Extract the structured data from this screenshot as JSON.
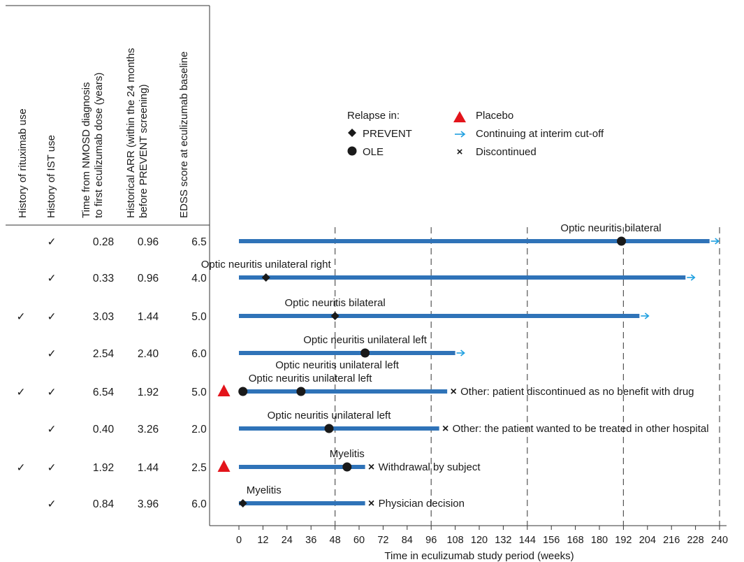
{
  "chart_data": {
    "type": "swimmer",
    "xlabel": "Time in eculizumab study period (weeks)",
    "xlim": [
      0,
      240
    ],
    "xticks": [
      0,
      12,
      24,
      36,
      48,
      60,
      72,
      84,
      96,
      108,
      120,
      132,
      144,
      156,
      168,
      180,
      192,
      204,
      216,
      228,
      240
    ],
    "reference_lines": [
      48,
      96,
      144,
      192,
      240
    ],
    "columns": [
      {
        "key": "rituximab",
        "label": "History of rituximab use"
      },
      {
        "key": "ist",
        "label": "History of IST use"
      },
      {
        "key": "time_dx",
        "label": [
          "Time from NMOSD diagnosis",
          "to first eculizumab dose (years)"
        ]
      },
      {
        "key": "arr",
        "label": [
          "Historical ARR (within the 24 months",
          "before PREVENT screening)"
        ]
      },
      {
        "key": "edss",
        "label": "EDSS score at eculizumab baseline"
      }
    ],
    "legend": {
      "relapse_title": "Relapse in:",
      "prevent": "PREVENT",
      "ole": "OLE",
      "placebo": "Placebo",
      "continuing": "Continuing at interim cut-off",
      "discontinued": "Discontinued"
    },
    "colors": {
      "bar": "#2f73b8",
      "placebo": "#e3141b",
      "continuing": "#1e9fe0",
      "discontinued": "#a4309a",
      "marker": "#1a1a1a",
      "text": "#1a1a1a"
    },
    "patients": [
      {
        "rituximab": "",
        "ist": "✓",
        "time_dx": "0.28",
        "arr": "0.96",
        "edss": "6.5",
        "end": 235,
        "status": "continuing",
        "placebo": false,
        "relapses": [
          {
            "week": 191,
            "study": "OLE",
            "label": "Optic neuritis bilateral"
          }
        ],
        "end_label": ""
      },
      {
        "rituximab": "",
        "ist": "✓",
        "time_dx": "0.33",
        "arr": "0.96",
        "edss": "4.0",
        "end": 223,
        "status": "continuing",
        "placebo": false,
        "relapses": [
          {
            "week": 13.5,
            "study": "PREVENT",
            "label": "Optic neuritis unilateral right"
          }
        ],
        "end_label": ""
      },
      {
        "rituximab": "✓",
        "ist": "✓",
        "time_dx": "3.03",
        "arr": "1.44",
        "edss": "5.0",
        "end": 200,
        "status": "continuing",
        "placebo": false,
        "relapses": [
          {
            "week": 48,
            "study": "PREVENT",
            "label": "Optic neuritis bilateral"
          }
        ],
        "end_label": ""
      },
      {
        "rituximab": "",
        "ist": "✓",
        "time_dx": "2.54",
        "arr": "2.40",
        "edss": "6.0",
        "end": 108,
        "status": "continuing",
        "placebo": false,
        "relapses": [
          {
            "week": 63,
            "study": "OLE",
            "label": "Optic neuritis unilateral left"
          }
        ],
        "end_label": ""
      },
      {
        "rituximab": "✓",
        "ist": "✓",
        "time_dx": "6.54",
        "arr": "1.92",
        "edss": "5.0",
        "end": 104,
        "status": "discontinued",
        "placebo": true,
        "relapses": [
          {
            "week": 2,
            "study": "OLE",
            "label": "Optic neuritis unilateral left"
          },
          {
            "week": 31,
            "study": "OLE",
            "label": "Optic neuritis unilateral left"
          }
        ],
        "end_label": "Other: patient discontinued as no benefit with drug"
      },
      {
        "rituximab": "",
        "ist": "✓",
        "time_dx": "0.40",
        "arr": "3.26",
        "edss": "2.0",
        "end": 100,
        "status": "discontinued",
        "placebo": false,
        "relapses": [
          {
            "week": 45,
            "study": "OLE",
            "label": "Optic neuritis unilateral left"
          }
        ],
        "end_label": "Other: the patient wanted to be treated in other hospital"
      },
      {
        "rituximab": "✓",
        "ist": "✓",
        "time_dx": "1.92",
        "arr": "1.44",
        "edss": "2.5",
        "end": 63,
        "status": "discontinued",
        "placebo": true,
        "relapses": [
          {
            "week": 54,
            "study": "OLE",
            "label": "Myelitis"
          }
        ],
        "end_label": "Withdrawal by subject"
      },
      {
        "rituximab": "",
        "ist": "✓",
        "time_dx": "0.84",
        "arr": "3.96",
        "edss": "6.0",
        "end": 63,
        "status": "discontinued",
        "placebo": false,
        "relapses": [
          {
            "week": 2,
            "study": "PREVENT",
            "label": "Myelitis"
          }
        ],
        "end_label": "Physician decision"
      }
    ]
  }
}
